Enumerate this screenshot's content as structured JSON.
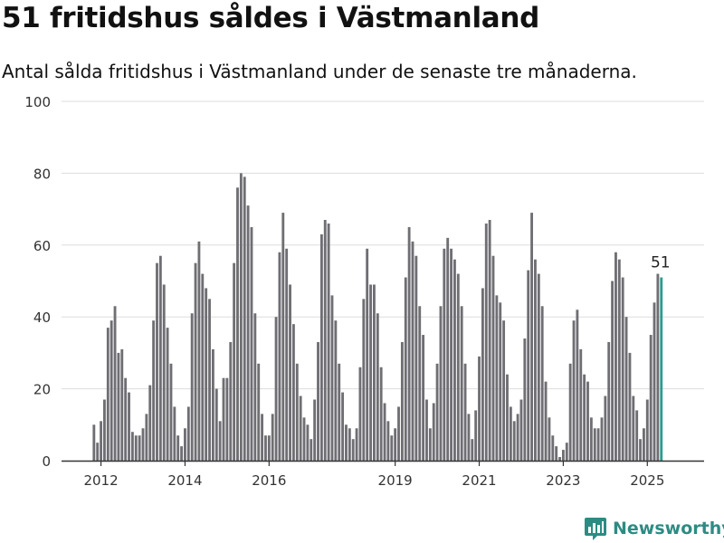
{
  "title": "51 fritidshus såldes i Västmanland",
  "subtitle": "Antal sålda fritidshus i Västmanland under de senaste tre månaderna.",
  "brand": "Newsworthy",
  "colors": {
    "bar": "#6f6e73",
    "highlight": "#2a9d8f",
    "grid": "#dddddd",
    "brand": "#2c8c83"
  },
  "chart_data": {
    "type": "bar",
    "title": "51 fritidshus såldes i Västmanland",
    "subtitle": "Antal sålda fritidshus i Västmanland under de senaste tre månaderna.",
    "xlabel": "",
    "ylabel": "",
    "ylim": [
      0,
      100
    ],
    "yticks": [
      0,
      20,
      40,
      60,
      80,
      100
    ],
    "xtick_labels": [
      "2012",
      "2014",
      "2016",
      "2019",
      "2021",
      "2023",
      "2025"
    ],
    "xtick_dates": [
      "2012-01",
      "2014-01",
      "2016-01",
      "2019-01",
      "2021-01",
      "2023-01",
      "2025-01"
    ],
    "grid": true,
    "legend": "none",
    "start_month": "2011-11",
    "values": [
      10,
      5,
      11,
      17,
      37,
      39,
      43,
      30,
      31,
      23,
      19,
      8,
      7,
      7,
      9,
      13,
      21,
      39,
      55,
      57,
      49,
      37,
      27,
      15,
      7,
      4,
      9,
      15,
      41,
      55,
      61,
      52,
      48,
      45,
      31,
      20,
      11,
      23,
      23,
      33,
      55,
      76,
      80,
      79,
      71,
      65,
      41,
      27,
      13,
      7,
      7,
      13,
      40,
      58,
      69,
      59,
      49,
      38,
      27,
      18,
      12,
      10,
      6,
      17,
      33,
      63,
      67,
      66,
      46,
      39,
      27,
      19,
      10,
      9,
      6,
      9,
      26,
      45,
      59,
      49,
      49,
      41,
      26,
      16,
      11,
      7,
      9,
      15,
      33,
      51,
      65,
      61,
      57,
      43,
      35,
      17,
      9,
      16,
      27,
      43,
      59,
      62,
      59,
      56,
      52,
      43,
      27,
      13,
      6,
      14,
      29,
      48,
      66,
      67,
      57,
      46,
      44,
      39,
      24,
      15,
      11,
      13,
      17,
      34,
      53,
      69,
      56,
      52,
      43,
      22,
      12,
      7,
      4,
      1,
      3,
      5,
      27,
      39,
      42,
      31,
      24,
      22,
      12,
      9,
      9,
      12,
      18,
      33,
      50,
      58,
      56,
      51,
      40,
      30,
      18,
      14,
      6,
      9,
      17,
      35,
      44,
      52,
      51
    ],
    "highlight_label": "51"
  }
}
